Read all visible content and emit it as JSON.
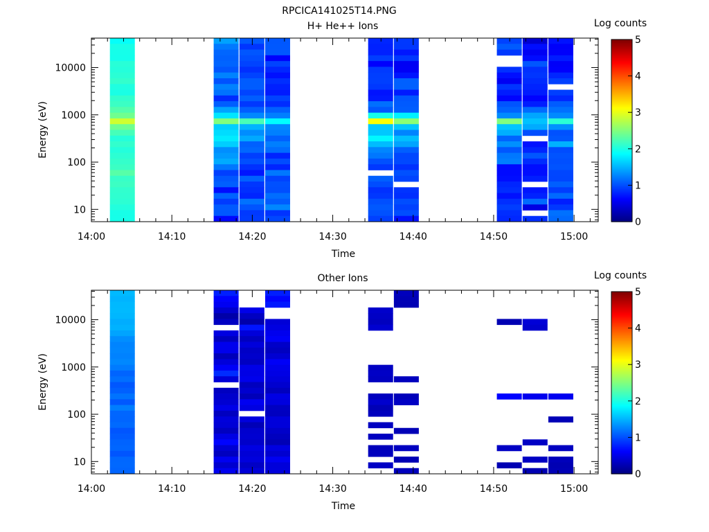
{
  "figure_title": "RPCICA141025T14.PNG",
  "chart_data": [
    {
      "type": "heatmap",
      "title": "H+ He++ Ions",
      "xlabel": "Time",
      "ylabel": "Energy (eV)",
      "x_tick_labels": [
        "14:00",
        "14:10",
        "14:20",
        "14:30",
        "14:40",
        "14:50",
        "15:00"
      ],
      "x_tick_minutes": [
        0,
        10,
        20,
        30,
        40,
        50,
        60
      ],
      "xlim_minutes": [
        0,
        63
      ],
      "y_scale": "log",
      "y_tick_labels": [
        "10",
        "100",
        "1000",
        "10000"
      ],
      "y_tick_values": [
        10,
        100,
        1000,
        10000
      ],
      "ylim": [
        5.5,
        42000
      ],
      "colorbar": {
        "label": "Log counts",
        "ticks": [
          "0",
          "1",
          "2",
          "3",
          "4",
          "5"
        ],
        "range": [
          0,
          5
        ],
        "colormap": "jet"
      },
      "time_columns": [
        {
          "start": 2.3,
          "end": 5.4,
          "profile": [
            1.95,
            1.95,
            2.0,
            2.0,
            2.05,
            2.05,
            2.1,
            2.1,
            2.0,
            2.0,
            2.1,
            2.15,
            2.25,
            2.45,
            2.9,
            2.4,
            2.2,
            2.1,
            2.1,
            2.05,
            2.05,
            2.1,
            2.2,
            2.3,
            2.1,
            2.15,
            2.1,
            2.1,
            2.05,
            2.0,
            2.0,
            2.0
          ],
          "jitter": 0.05,
          "empty": []
        },
        {
          "start": 15.2,
          "end": 18.3,
          "profile": [
            1.25,
            1.3,
            1.3,
            1.2,
            1.15,
            1.15,
            1.05,
            1.0,
            1.15,
            1.0,
            1.05,
            1.2,
            1.4,
            1.75,
            2.55,
            1.8,
            1.5,
            2.0,
            1.7,
            1.4,
            1.3,
            1.25,
            1.2,
            1.1,
            1.1,
            1.2,
            0.75,
            1.15,
            1.0,
            1.05,
            1.0,
            0.8
          ],
          "jitter": 0.25,
          "empty": []
        },
        {
          "start": 18.4,
          "end": 21.5,
          "profile": [
            0.9,
            0.9,
            0.9,
            0.95,
            0.9,
            0.85,
            0.95,
            1.0,
            0.9,
            1.0,
            1.0,
            1.0,
            1.05,
            1.35,
            2.3,
            1.55,
            1.2,
            1.3,
            1.25,
            1.0,
            1.1,
            1.05,
            1.0,
            0.9,
            0.9,
            1.0,
            0.8,
            0.95,
            1.2,
            1.0,
            1.05,
            0.75
          ],
          "jitter": 0.2,
          "empty": []
        },
        {
          "start": 21.6,
          "end": 24.7,
          "profile": [
            0.9,
            0.9,
            0.9,
            0.45,
            0.85,
            0.9,
            0.9,
            0.95,
            0.95,
            0.95,
            0.9,
            0.95,
            1.0,
            1.25,
            1.8,
            1.4,
            1.1,
            1.2,
            1.3,
            1.0,
            0.95,
            1.0,
            1.0,
            1.05,
            0.9,
            0.85,
            1.2,
            1.0,
            1.2,
            1.1,
            0.85,
            0.9
          ],
          "jitter": 0.2,
          "empty": []
        },
        {
          "start": 34.4,
          "end": 37.5,
          "profile": [
            0.9,
            0.9,
            0.9,
            0.9,
            0.8,
            0.8,
            0.85,
            0.85,
            0.9,
            0.9,
            0.9,
            1.0,
            1.2,
            1.9,
            2.95,
            1.8,
            1.45,
            1.7,
            1.35,
            1.1,
            1.1,
            1.05,
            1.0,
            1.0,
            1.0,
            0.85,
            0.9,
            1.0,
            1.05,
            0.9,
            1.0,
            1.0
          ],
          "jitter": 0.2,
          "empty": [
            23
          ]
        },
        {
          "start": 37.6,
          "end": 40.7,
          "profile": [
            0.85,
            0.8,
            0.8,
            0.8,
            0.6,
            0.7,
            0.8,
            0.9,
            0.9,
            0.7,
            0.9,
            0.9,
            1.2,
            1.75,
            2.7,
            1.6,
            1.25,
            1.45,
            1.25,
            1.1,
            1.1,
            1.0,
            1.0,
            0.95,
            0.95,
            0.85,
            0.85,
            0.85,
            0.9,
            1.0,
            0.9,
            0.9
          ],
          "jitter": 0.2,
          "empty": [
            25
          ]
        },
        {
          "start": 50.4,
          "end": 53.5,
          "profile": [
            1.05,
            1.05,
            1.05,
            -1,
            -1,
            0.75,
            0.8,
            0.7,
            0.8,
            0.8,
            0.85,
            0.9,
            0.95,
            1.1,
            2.3,
            1.5,
            1.25,
            1.35,
            1.2,
            1.0,
            1.1,
            1.05,
            0.9,
            0.85,
            0.9,
            1.0,
            1.05,
            0.95,
            0.8,
            0.7,
            1.0,
            1.0
          ],
          "jitter": 0.25,
          "empty": []
        },
        {
          "start": 53.6,
          "end": 56.7,
          "profile": [
            0.55,
            0.6,
            0.7,
            0.7,
            0.8,
            0.9,
            0.8,
            0.7,
            0.85,
            0.8,
            0.85,
            0.9,
            1.0,
            1.2,
            1.75,
            1.25,
            1.0,
            -1,
            0.9,
            0.95,
            1.0,
            1.0,
            0.9,
            0.8,
            0.7,
            -1,
            0.7,
            0.8,
            0.9,
            0.7,
            -1,
            0.9
          ],
          "jitter": 0.25,
          "empty": []
        },
        {
          "start": 56.8,
          "end": 59.9,
          "profile": [
            0.8,
            0.85,
            0.85,
            0.8,
            0.8,
            0.75,
            0.6,
            0.8,
            -1,
            0.8,
            0.85,
            0.9,
            0.95,
            1.15,
            2.0,
            1.3,
            1.1,
            1.1,
            1.5,
            1.0,
            1.0,
            0.9,
            0.95,
            0.9,
            0.85,
            0.9,
            0.75,
            0.9,
            0.8,
            0.9,
            0.95,
            0.9
          ],
          "jitter": 0.25,
          "empty": []
        }
      ]
    },
    {
      "type": "heatmap",
      "title": "Other Ions",
      "xlabel": "Time",
      "ylabel": "Energy (eV)",
      "x_tick_labels": [
        "14:00",
        "14:10",
        "14:20",
        "14:30",
        "14:40",
        "14:50",
        "15:00"
      ],
      "x_tick_minutes": [
        0,
        10,
        20,
        30,
        40,
        50,
        60
      ],
      "xlim_minutes": [
        0,
        63
      ],
      "y_scale": "log",
      "y_tick_labels": [
        "10",
        "100",
        "1000",
        "10000"
      ],
      "y_tick_values": [
        10,
        100,
        1000,
        10000
      ],
      "ylim": [
        5.5,
        42000
      ],
      "colorbar": {
        "label": "Log counts",
        "ticks": [
          "0",
          "1",
          "2",
          "3",
          "4",
          "5"
        ],
        "range": [
          0,
          5
        ],
        "colormap": "jet"
      },
      "time_columns": [
        {
          "start": 2.3,
          "end": 5.4,
          "profile": [
            1.55,
            1.55,
            1.55,
            1.5,
            1.5,
            1.45,
            1.45,
            1.4,
            1.35,
            1.3,
            1.25,
            1.3,
            1.25,
            1.2,
            1.1,
            1.15,
            1.05,
            1.1,
            1.15,
            1.05,
            1.2,
            1.15,
            1.1,
            1.15,
            1.05,
            1.1,
            1.1,
            1.15,
            1.0,
            1.1,
            1.15,
            1.1
          ],
          "jitter": 0.05,
          "empty": []
        },
        {
          "start": 15.2,
          "end": 18.3,
          "profile": [
            0.7,
            0.7,
            0.6,
            0.3,
            0.3,
            0.4,
            -1,
            0.5,
            0.4,
            0.5,
            0.45,
            0.35,
            0.5,
            0.5,
            0.8,
            0.5,
            -1,
            0.4,
            0.35,
            0.5,
            0.45,
            0.3,
            0.4,
            0.5,
            0.35,
            0.45,
            0.55,
            0.4,
            0.3,
            0.5,
            0.35,
            0.5
          ],
          "jitter": 0.1,
          "empty": []
        },
        {
          "start": 18.4,
          "end": 21.5,
          "profile": [
            -1,
            -1,
            -1,
            0.5,
            0.4,
            0.3,
            0.7,
            0.5,
            0.3,
            0.5,
            0.4,
            0.35,
            0.3,
            0.45,
            0.55,
            0.45,
            0.4,
            0.35,
            0.3,
            0.5,
            0.45,
            -1,
            0.4,
            0.35,
            0.3,
            0.4,
            0.3,
            0.5,
            0.35,
            0.4,
            0.3,
            0.35
          ],
          "jitter": 0.1,
          "empty": []
        },
        {
          "start": 21.6,
          "end": 24.7,
          "profile": [
            0.7,
            0.7,
            0.7,
            -1,
            -1,
            0.5,
            0.55,
            0.45,
            0.5,
            0.45,
            0.4,
            0.45,
            0.5,
            0.45,
            0.4,
            0.5,
            0.45,
            0.4,
            0.5,
            0.45,
            0.4,
            0.35,
            0.45,
            0.5,
            0.45,
            0.4,
            0.35,
            0.45,
            0.4,
            0.5,
            0.4,
            0.45
          ],
          "jitter": 0.1,
          "empty": []
        },
        {
          "start": 34.4,
          "end": 37.5,
          "profile": [
            -1,
            -1,
            -1,
            0.35,
            0.35,
            0.3,
            0.35,
            -1,
            -1,
            -1,
            -1,
            -1,
            -1,
            0.3,
            0.3,
            0.3,
            -1,
            -1,
            0.3,
            0.35,
            0.3,
            0.35,
            -1,
            0.3,
            -1,
            0.3,
            -1,
            0.3,
            0.3,
            -1,
            0.35,
            -1
          ],
          "jitter": 0.05,
          "empty": []
        },
        {
          "start": 37.6,
          "end": 40.7,
          "profile": [
            0.3,
            0.3,
            0.3,
            -1,
            -1,
            -1,
            -1,
            -1,
            -1,
            -1,
            -1,
            -1,
            -1,
            -1,
            -1,
            0.35,
            -1,
            -1,
            0.3,
            0.35,
            -1,
            -1,
            -1,
            -1,
            0.3,
            -1,
            -1,
            0.3,
            -1,
            0.3,
            -1,
            0.35
          ],
          "jitter": 0.05,
          "empty": []
        },
        {
          "start": 50.4,
          "end": 53.5,
          "profile": [
            -1,
            -1,
            -1,
            -1,
            -1,
            0.3,
            -1,
            -1,
            -1,
            -1,
            -1,
            -1,
            -1,
            -1,
            -1,
            -1,
            -1,
            -1,
            0.6,
            -1,
            -1,
            -1,
            -1,
            -1,
            -1,
            -1,
            -1,
            0.3,
            -1,
            -1,
            0.3,
            -1
          ],
          "jitter": 0.05,
          "empty": []
        },
        {
          "start": 53.6,
          "end": 56.7,
          "profile": [
            -1,
            -1,
            -1,
            -1,
            -1,
            0.4,
            0.4,
            -1,
            -1,
            -1,
            -1,
            -1,
            -1,
            -1,
            -1,
            -1,
            -1,
            -1,
            0.55,
            -1,
            -1,
            -1,
            -1,
            -1,
            -1,
            -1,
            0.3,
            -1,
            -1,
            0.3,
            -1,
            0.3
          ],
          "jitter": 0.05,
          "empty": []
        },
        {
          "start": 56.8,
          "end": 59.9,
          "profile": [
            -1,
            -1,
            -1,
            -1,
            -1,
            -1,
            -1,
            -1,
            -1,
            -1,
            -1,
            -1,
            -1,
            -1,
            -1,
            -1,
            -1,
            -1,
            0.5,
            -1,
            -1,
            -1,
            0.3,
            -1,
            -1,
            -1,
            -1,
            0.3,
            -1,
            0.3,
            0.3,
            0.3
          ],
          "jitter": 0.05,
          "empty": []
        }
      ]
    }
  ]
}
